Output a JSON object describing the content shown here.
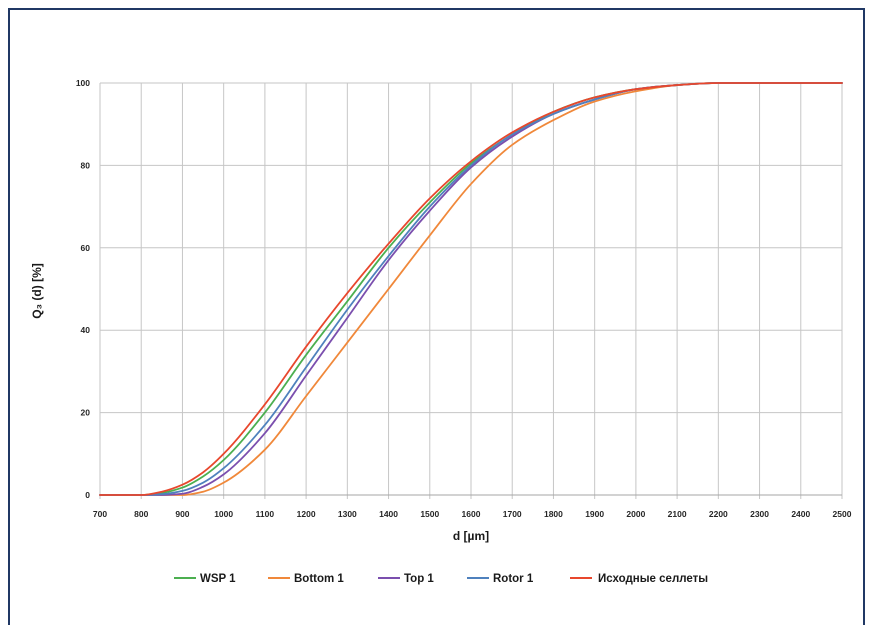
{
  "frame_color": "#203864",
  "chart_data": {
    "type": "line",
    "xlabel": "d [µm]",
    "ylabel": "Q₃ (d) [%]",
    "xlim": [
      700,
      2500
    ],
    "ylim": [
      0,
      100
    ],
    "x_ticks": [
      700,
      800,
      900,
      1000,
      1100,
      1200,
      1300,
      1400,
      1500,
      1600,
      1700,
      1800,
      1900,
      2000,
      2100,
      2200,
      2300,
      2400,
      2500
    ],
    "y_ticks": [
      0,
      20,
      40,
      60,
      80,
      100
    ],
    "grid": true,
    "legend_position": "bottom",
    "x": [
      700,
      800,
      850,
      900,
      950,
      1000,
      1100,
      1200,
      1300,
      1400,
      1500,
      1600,
      1700,
      1800,
      1900,
      2000,
      2100,
      2200,
      2300,
      2400,
      2500
    ],
    "series": [
      {
        "name": "WSP 1",
        "color": "#4caf50",
        "values": [
          0,
          0,
          0.5,
          1.8,
          4.5,
          8.5,
          20,
          34,
          47,
          60,
          71,
          80.5,
          87.5,
          93,
          96.5,
          98.5,
          99.5,
          100,
          100,
          100,
          100
        ]
      },
      {
        "name": "Bottom 1",
        "color": "#f0883a",
        "values": [
          0,
          0,
          0,
          0,
          0.8,
          3,
          11,
          24,
          37,
          50,
          63,
          75.5,
          85,
          91,
          95.5,
          98,
          99.5,
          100,
          100,
          100,
          100
        ]
      },
      {
        "name": "Top 1",
        "color": "#7b4fae",
        "values": [
          0,
          0,
          0,
          0.3,
          2,
          5,
          15,
          29,
          43,
          57,
          69,
          79.5,
          87,
          92.5,
          96,
          98.5,
          99.5,
          100,
          100,
          100,
          100
        ]
      },
      {
        "name": "Rotor 1",
        "color": "#4f81bd",
        "values": [
          0,
          0,
          0.2,
          1,
          3,
          6.5,
          17,
          31,
          45,
          58,
          70,
          80,
          87.5,
          92.5,
          96,
          98.5,
          99.5,
          100,
          100,
          100,
          100
        ]
      },
      {
        "name": "Исходные селлеты",
        "color": "#e8472d",
        "values": [
          0,
          0,
          0.8,
          2.5,
          5.5,
          10,
          22,
          36,
          49,
          61,
          72,
          81,
          88,
          93,
          96.5,
          98.5,
          99.5,
          100,
          100,
          100,
          100
        ]
      }
    ]
  }
}
